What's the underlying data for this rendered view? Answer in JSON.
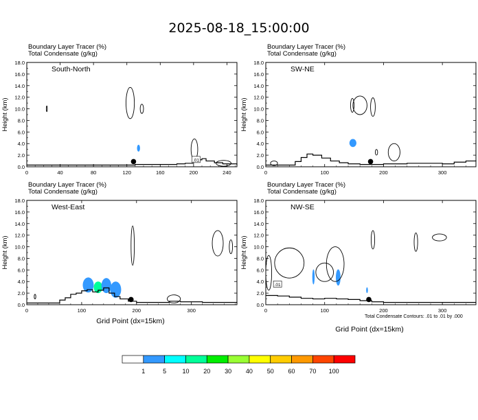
{
  "title": "2025-08-18_15:00:00",
  "colorbar": {
    "labels": [
      "1",
      "5",
      "10",
      "20",
      "30",
      "40",
      "50",
      "60",
      "70",
      "100"
    ],
    "colors": [
      "#ffffff",
      "#3399ff",
      "#00ffff",
      "#00ff99",
      "#00ee00",
      "#99ff33",
      "#ffff00",
      "#ffcc00",
      "#ff9900",
      "#ff4400",
      "#ff0000"
    ]
  },
  "footnote": "Total Condensate Contours: .01 to .01 by .000",
  "chart_data": [
    {
      "type": "contour",
      "panel_label": "South-North",
      "subtitle_lines": [
        "Boundary Layer Tracer   (%)",
        "Total Condensate   (g/kg)"
      ],
      "xlabel": "",
      "ylabel": "Height (km)",
      "xlim": [
        0,
        252
      ],
      "ylim": [
        0,
        18
      ],
      "xticks": [
        "0",
        "40",
        "80",
        "120",
        "160",
        "200",
        "240"
      ],
      "yticks": [
        "0.0",
        "2.0",
        "4.0",
        "6.0",
        "8.0",
        "10.0",
        "12.0",
        "14.0",
        "16.0",
        "18.0"
      ],
      "terrain": [
        [
          0,
          0.3
        ],
        [
          20,
          0.3
        ],
        [
          60,
          0.3
        ],
        [
          100,
          0.3
        ],
        [
          130,
          0.4
        ],
        [
          150,
          0.4
        ],
        [
          180,
          0.5
        ],
        [
          190,
          0.6
        ],
        [
          200,
          0.8
        ],
        [
          205,
          1.2
        ],
        [
          210,
          1.4
        ],
        [
          215,
          1.0
        ],
        [
          225,
          0.7
        ],
        [
          235,
          0.5
        ],
        [
          252,
          0.3
        ]
      ],
      "marker": [
        128,
        0.9
      ],
      "contour_label": ".01",
      "condensate_blobs": [
        {
          "x": 124,
          "y": 11,
          "rx": 5,
          "ry": 2.7
        },
        {
          "x": 138,
          "y": 10,
          "rx": 2,
          "ry": 0.8
        },
        {
          "x": 24,
          "y": 10,
          "rx": 0.6,
          "ry": 0.5
        },
        {
          "x": 201,
          "y": 3,
          "rx": 4,
          "ry": 1.8
        },
        {
          "x": 236,
          "y": 0.6,
          "rx": 9,
          "ry": 0.5
        }
      ],
      "tracer_blobs": [
        {
          "x": 134,
          "y": 3.2,
          "rx": 1.8,
          "ry": 0.6,
          "level": "1"
        }
      ]
    },
    {
      "type": "contour",
      "panel_label": "SW-NE",
      "subtitle_lines": [
        "Boundary Layer Tracer   (%)",
        "Total Condensate   (g/kg)"
      ],
      "xlabel": "",
      "ylabel": "Height (km)",
      "xlim": [
        0,
        357
      ],
      "ylim": [
        0,
        18
      ],
      "xticks": [
        "0",
        "100",
        "200",
        "300"
      ],
      "yticks": [
        "0.0",
        "2.0",
        "4.0",
        "6.0",
        "8.0",
        "10.0",
        "12.0",
        "14.0",
        "16.0",
        "18.0"
      ],
      "terrain": [
        [
          0,
          0.3
        ],
        [
          30,
          0.3
        ],
        [
          50,
          0.9
        ],
        [
          60,
          1.6
        ],
        [
          70,
          2.2
        ],
        [
          80,
          2.0
        ],
        [
          95,
          1.5
        ],
        [
          110,
          1.0
        ],
        [
          125,
          0.7
        ],
        [
          140,
          0.5
        ],
        [
          160,
          0.4
        ],
        [
          180,
          0.4
        ],
        [
          200,
          0.5
        ],
        [
          240,
          0.6
        ],
        [
          280,
          0.6
        ],
        [
          300,
          0.5
        ],
        [
          320,
          0.8
        ],
        [
          340,
          1.0
        ],
        [
          357,
          1.1
        ]
      ],
      "marker": [
        178,
        0.9
      ],
      "contour_label": "",
      "condensate_blobs": [
        {
          "x": 160,
          "y": 10.6,
          "rx": 12,
          "ry": 1.6
        },
        {
          "x": 182,
          "y": 10.3,
          "rx": 4,
          "ry": 1.6
        },
        {
          "x": 147,
          "y": 10.6,
          "rx": 3,
          "ry": 1.2
        },
        {
          "x": 218,
          "y": 2.5,
          "rx": 10,
          "ry": 1.5
        },
        {
          "x": 188,
          "y": 2.5,
          "rx": 2,
          "ry": 0.5
        },
        {
          "x": 14,
          "y": 0.6,
          "rx": 6,
          "ry": 0.4
        }
      ],
      "tracer_blobs": [
        {
          "x": 148,
          "y": 4.1,
          "rx": 6,
          "ry": 0.7,
          "level": "1"
        }
      ]
    },
    {
      "type": "contour",
      "panel_label": "West-East",
      "subtitle_lines": [
        "Boundary Layer Tracer   (%)",
        "Total Condensate   (g/kg)"
      ],
      "xlabel": "Grid Point (dx=15km)",
      "ylabel": "Height (km)",
      "xlim": [
        0,
        383
      ],
      "ylim": [
        0,
        18
      ],
      "xticks": [
        "0",
        "100",
        "200",
        "300"
      ],
      "yticks": [
        "0.0",
        "2.0",
        "4.0",
        "6.0",
        "8.0",
        "10.0",
        "12.0",
        "14.0",
        "16.0",
        "18.0"
      ],
      "terrain": [
        [
          0,
          0.3
        ],
        [
          50,
          0.3
        ],
        [
          60,
          0.8
        ],
        [
          70,
          1.2
        ],
        [
          80,
          1.8
        ],
        [
          90,
          2.0
        ],
        [
          100,
          2.4
        ],
        [
          110,
          2.6
        ],
        [
          120,
          2.2
        ],
        [
          130,
          2.5
        ],
        [
          140,
          2.9
        ],
        [
          150,
          2.0
        ],
        [
          160,
          1.4
        ],
        [
          170,
          1.0
        ],
        [
          185,
          0.6
        ],
        [
          200,
          0.4
        ],
        [
          230,
          0.4
        ],
        [
          260,
          0.6
        ],
        [
          280,
          0.5
        ],
        [
          320,
          0.4
        ],
        [
          383,
          0.3
        ]
      ],
      "marker": [
        190,
        0.9
      ],
      "contour_label": "",
      "condensate_blobs": [
        {
          "x": 193,
          "y": 10.2,
          "rx": 3,
          "ry": 3.4
        },
        {
          "x": 348,
          "y": 10.6,
          "rx": 10,
          "ry": 2.2
        },
        {
          "x": 372,
          "y": 10.0,
          "rx": 3,
          "ry": 1.2
        },
        {
          "x": 268,
          "y": 1.0,
          "rx": 12,
          "ry": 0.7
        },
        {
          "x": 15,
          "y": 1.4,
          "rx": 1.5,
          "ry": 0.4
        }
      ],
      "tracer_blobs": [
        {
          "x": 112,
          "y": 3.4,
          "rx": 10,
          "ry": 1.3,
          "level": "1"
        },
        {
          "x": 130,
          "y": 3.0,
          "rx": 8,
          "ry": 1.0,
          "level": "10"
        },
        {
          "x": 145,
          "y": 3.3,
          "rx": 9,
          "ry": 1.3,
          "level": "1"
        },
        {
          "x": 162,
          "y": 2.6,
          "rx": 10,
          "ry": 1.4,
          "level": "1"
        }
      ]
    },
    {
      "type": "contour",
      "panel_label": "NW-SE",
      "subtitle_lines": [
        "Boundary Layer Tracer   (%)",
        "Total Condensate   (g/kg)"
      ],
      "xlabel": "Grid Point (dx=15km)",
      "ylabel": "Height (km)",
      "xlim": [
        0,
        357
      ],
      "ylim": [
        0,
        18
      ],
      "xticks": [
        "0",
        "100",
        "200",
        "300"
      ],
      "yticks": [
        "0.0",
        "2.0",
        "4.0",
        "6.0",
        "8.0",
        "10.0",
        "12.0",
        "14.0",
        "16.0",
        "18.0"
      ],
      "terrain": [
        [
          0,
          1.6
        ],
        [
          20,
          1.5
        ],
        [
          40,
          1.3
        ],
        [
          60,
          1.1
        ],
        [
          80,
          1.0
        ],
        [
          100,
          1.1
        ],
        [
          120,
          1.0
        ],
        [
          140,
          0.9
        ],
        [
          160,
          0.7
        ],
        [
          180,
          0.5
        ],
        [
          200,
          0.4
        ],
        [
          240,
          0.4
        ],
        [
          300,
          0.4
        ],
        [
          357,
          0.4
        ]
      ],
      "marker": [
        175,
        0.9
      ],
      "contour_label": ".01",
      "condensate_blobs": [
        {
          "x": 40,
          "y": 7.2,
          "rx": 25,
          "ry": 2.6
        },
        {
          "x": 118,
          "y": 7.0,
          "rx": 15,
          "ry": 3.0
        },
        {
          "x": 5,
          "y": 5.5,
          "rx": 5,
          "ry": 3.0
        },
        {
          "x": 182,
          "y": 11.2,
          "rx": 3,
          "ry": 1.6
        },
        {
          "x": 255,
          "y": 10.8,
          "rx": 3,
          "ry": 1.6
        },
        {
          "x": 295,
          "y": 11.6,
          "rx": 12,
          "ry": 0.6
        },
        {
          "x": 100,
          "y": 5.6,
          "rx": 15,
          "ry": 1.6
        }
      ],
      "tracer_blobs": [
        {
          "x": 81,
          "y": 4.8,
          "rx": 2,
          "ry": 1.3,
          "level": "1"
        },
        {
          "x": 123,
          "y": 4.7,
          "rx": 4,
          "ry": 1.4,
          "level": "1"
        },
        {
          "x": 172,
          "y": 2.5,
          "rx": 1.5,
          "ry": 0.5,
          "level": "1"
        }
      ]
    }
  ]
}
